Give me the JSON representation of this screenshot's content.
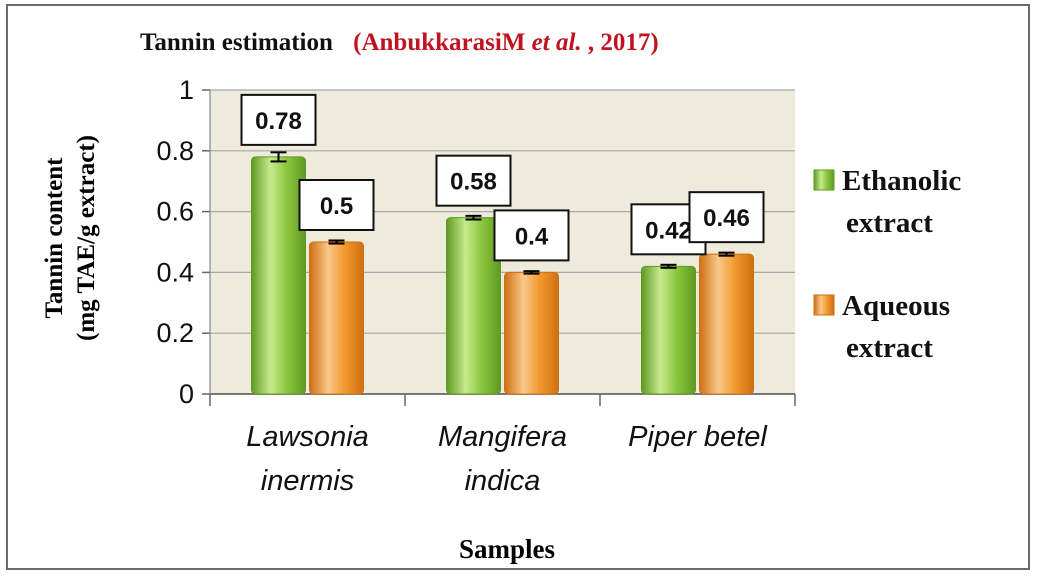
{
  "chart_data": {
    "type": "bar",
    "title": "Tannin estimation",
    "subtitle": "(AnbukkarasiM et al., 2017)",
    "subtitle_parts": {
      "prefix": "(AnbukkarasiM ",
      "italic": "et al.",
      "suffix": ", 2017)"
    },
    "xlabel": "Samples",
    "ylabel_line1": "Tannin content",
    "ylabel_line2": "(mg TAE/g extract)",
    "categories": [
      {
        "line1": "Lawsonia",
        "line2": "inermis"
      },
      {
        "line1": "Mangifera",
        "line2": "indica"
      },
      {
        "line1": "Piper betel",
        "line2": ""
      }
    ],
    "series": [
      {
        "name_line1": "Ethanolic",
        "name_line2": "extract",
        "values": [
          0.78,
          0.58,
          0.42
        ],
        "labels": [
          "0.78",
          "0.58",
          "0.42"
        ],
        "errors": [
          0.015,
          0.006,
          0.005
        ],
        "color": "#8cc63f",
        "color_light": "#c8ea8e",
        "color_dark": "#5e9a22"
      },
      {
        "name_line1": "Aqueous",
        "name_line2": "extract",
        "values": [
          0.5,
          0.4,
          0.46
        ],
        "labels": [
          "0.5",
          "0.4",
          "0.46"
        ],
        "errors": [
          0.005,
          0.004,
          0.005
        ],
        "color": "#f29a2e",
        "color_light": "#f9c98a",
        "color_dark": "#cf6f12"
      }
    ],
    "ylim": [
      0,
      1
    ],
    "yticks": [
      0,
      0.2,
      0.4,
      0.6,
      0.8,
      1
    ],
    "ytick_labels": [
      "0",
      "0.2",
      "0.4",
      "0.6",
      "0.8",
      "1"
    ],
    "grid": true,
    "legend_position": "right",
    "plot_background": "#eeeadc",
    "title_color": "#111111",
    "subtitle_color": "#c1121f"
  }
}
